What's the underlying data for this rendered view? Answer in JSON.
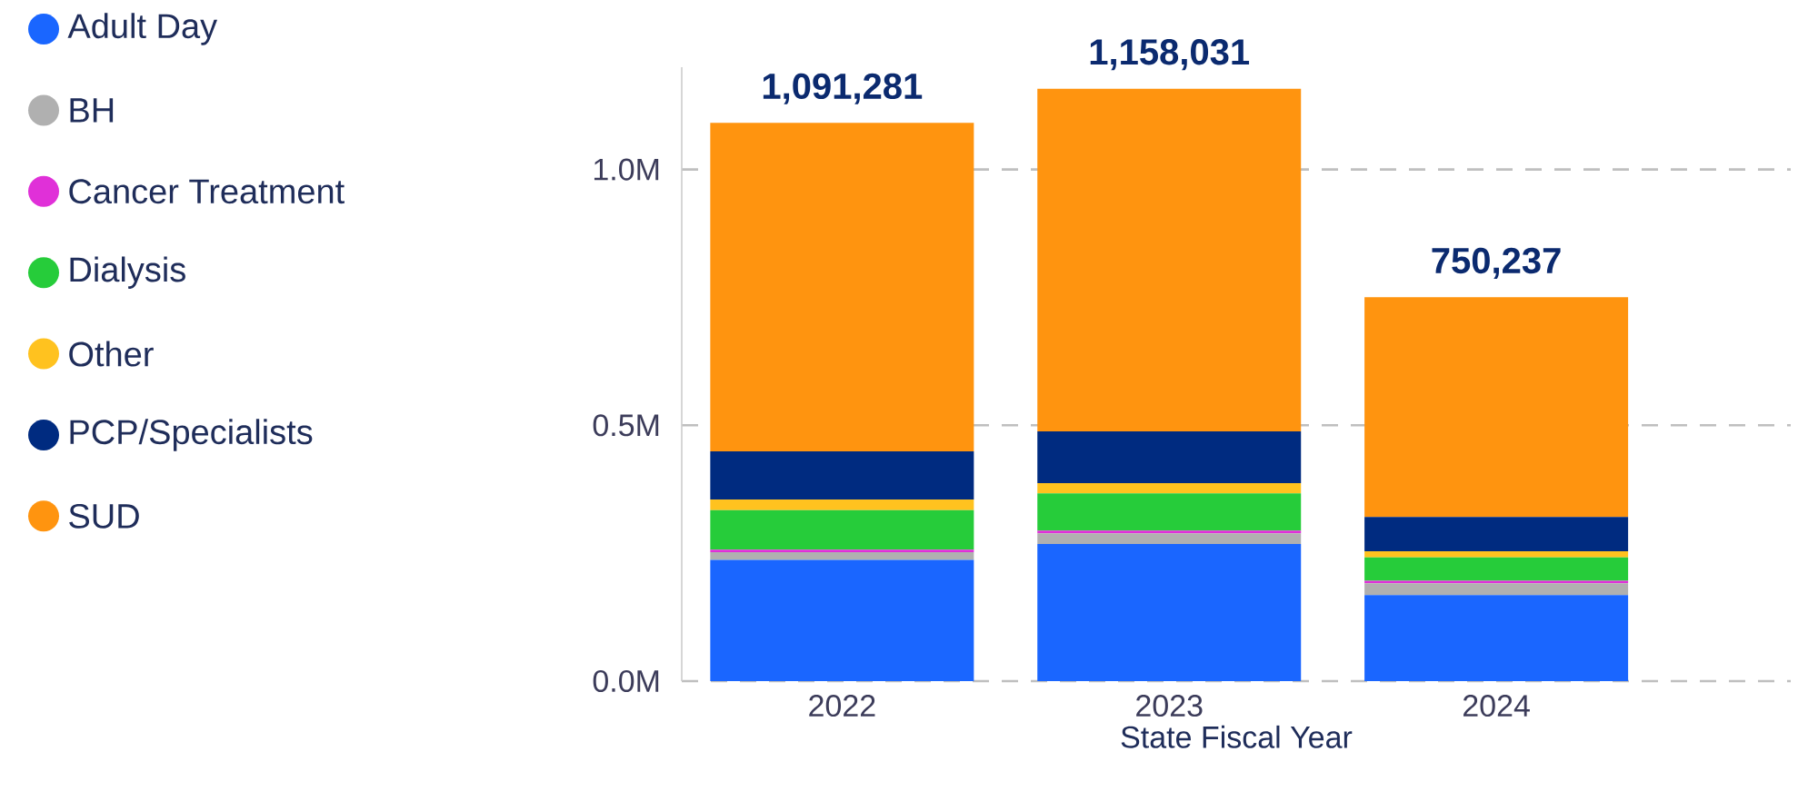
{
  "chart_data": {
    "type": "bar",
    "stacked": true,
    "xlabel": "State Fiscal Year",
    "categories": [
      "2022",
      "2023",
      "2024"
    ],
    "series": [
      {
        "name": "Adult Day",
        "color": "#1a66ff",
        "values": [
          237000,
          268000,
          168000
        ]
      },
      {
        "name": "BH",
        "color": "#b0b0b0",
        "values": [
          15000,
          21000,
          23000
        ]
      },
      {
        "name": "Cancer Treatment",
        "color": "#e030d8",
        "values": [
          5000,
          5000,
          5000
        ]
      },
      {
        "name": "Dialysis",
        "color": "#26cc3a",
        "values": [
          77000,
          73000,
          46000
        ]
      },
      {
        "name": "Other",
        "color": "#ffc21f",
        "values": [
          21000,
          20000,
          12000
        ]
      },
      {
        "name": "PCP/Specialists",
        "color": "#002b80",
        "values": [
          94000,
          101000,
          67000
        ]
      },
      {
        "name": "SUD",
        "color": "#ff940f",
        "values": [
          642281,
          670031,
          429237
        ]
      }
    ],
    "totals": [
      "1,091,281",
      "1,158,031",
      "750,237"
    ],
    "ylim": [
      0,
      1200000
    ],
    "yticks": [
      {
        "value": 0,
        "label": "0.0M"
      },
      {
        "value": 500000,
        "label": "0.5M"
      },
      {
        "value": 1000000,
        "label": "1.0M"
      }
    ],
    "grid": "y",
    "legend": "left"
  }
}
